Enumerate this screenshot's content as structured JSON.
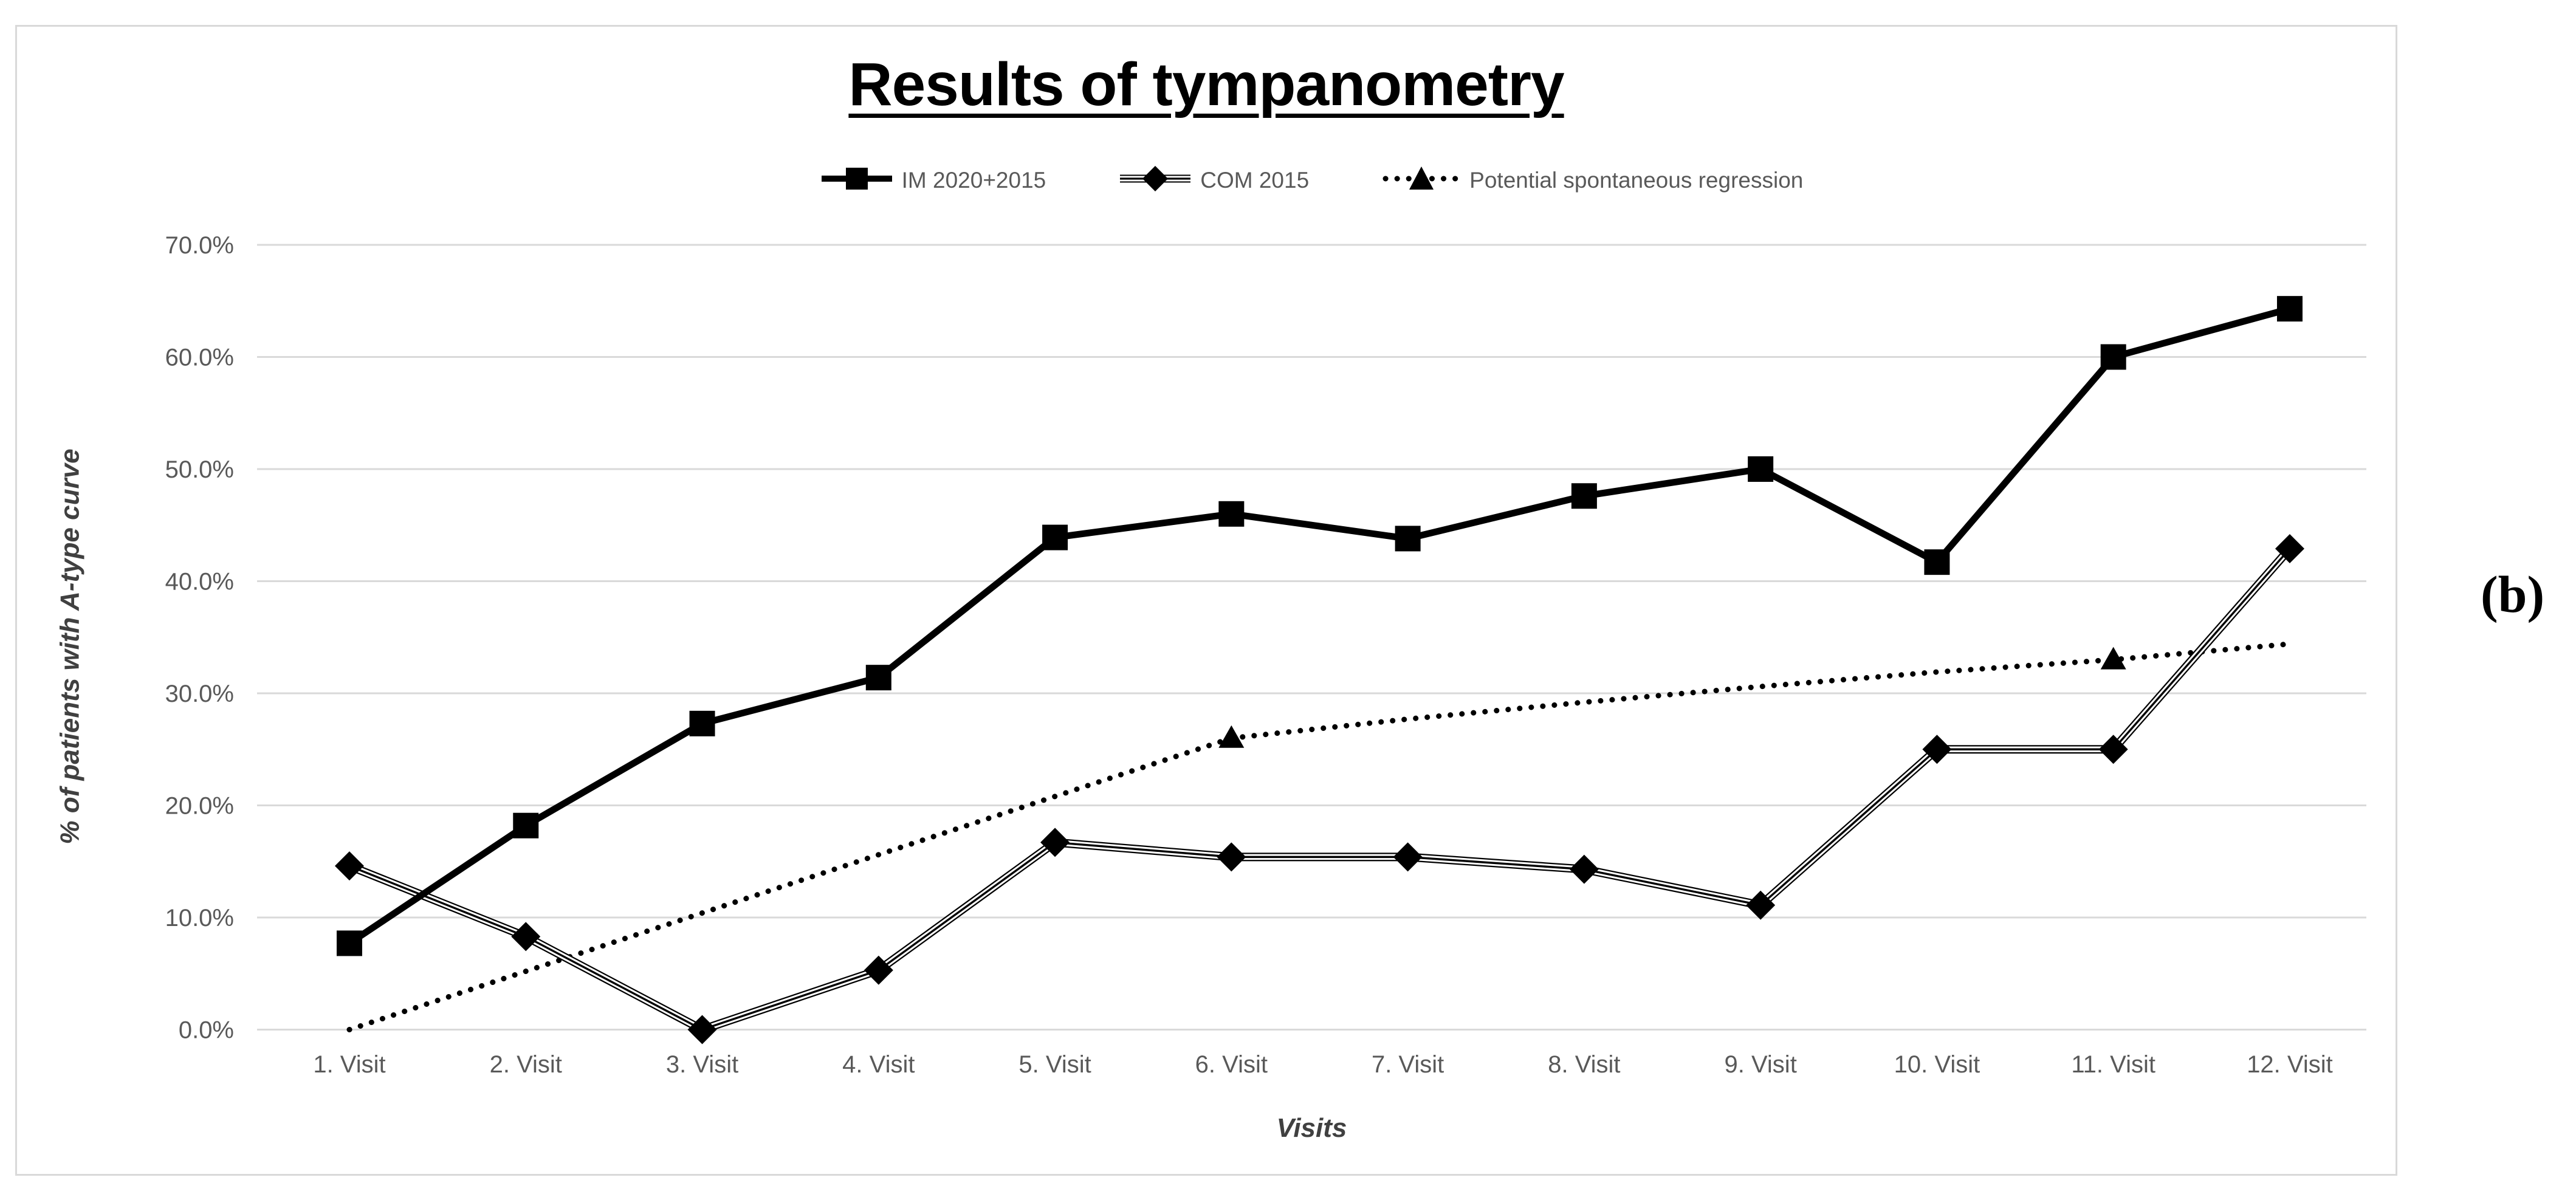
{
  "figure_label": "(b)",
  "header": {
    "title": "Results of tympanometry"
  },
  "legend": {
    "items": [
      {
        "label": "IM 2020+2015",
        "swatch": "thick-solid-line-square-marker"
      },
      {
        "label": "COM 2015",
        "swatch": "double-line-diamond-marker"
      },
      {
        "label": "Potential spontaneous regression",
        "swatch": "dotted-line-triangle-marker"
      }
    ]
  },
  "axes": {
    "x_title": "Visits",
    "y_title": "% of patients with A-type curve"
  },
  "chart_data": {
    "type": "line",
    "title": "Results of tympanometry",
    "xlabel": "Visits",
    "ylabel": "% of patients with A-type curve",
    "categories": [
      "1. Visit",
      "2. Visit",
      "3. Visit",
      "4. Visit",
      "5. Visit",
      "6. Visit",
      "7. Visit",
      "8. Visit",
      "9. Visit",
      "10. Visit",
      "11. Visit",
      "12. Visit"
    ],
    "y_ticks": [
      {
        "value": 70,
        "label": "70.0%"
      },
      {
        "value": 60,
        "label": "60.0%"
      },
      {
        "value": 50,
        "label": "50.0%"
      },
      {
        "value": 40,
        "label": "40.0%"
      },
      {
        "value": 30,
        "label": "30.0%"
      },
      {
        "value": 20,
        "label": "20.0%"
      },
      {
        "value": 10,
        "label": "10.0%"
      },
      {
        "value": 0,
        "label": "0.0%"
      }
    ],
    "ylim": [
      0,
      70
    ],
    "grid": true,
    "legend_position": "top-center",
    "series": [
      {
        "name": "IM 2020+2015",
        "line_style": "thick-solid",
        "marker": "square",
        "color": "#000000",
        "values": [
          7.7,
          18.2,
          27.3,
          31.4,
          43.9,
          46.0,
          43.8,
          47.6,
          50.0,
          41.7,
          60.0,
          64.3
        ]
      },
      {
        "name": "COM 2015",
        "line_style": "double",
        "marker": "diamond",
        "color": "#000000",
        "values": [
          14.6,
          8.3,
          0.0,
          5.3,
          16.7,
          15.4,
          15.4,
          14.3,
          11.1,
          25.0,
          25.0,
          42.9
        ]
      },
      {
        "name": "Potential spontaneous regression",
        "line_style": "dotted",
        "marker": "triangle",
        "marker_visit_indexes": [
          5,
          10
        ],
        "color": "#000000",
        "values": [
          0.0,
          5.2,
          10.4,
          15.6,
          20.8,
          26.0,
          27.7,
          29.2,
          30.6,
          31.9,
          33.0,
          34.4
        ]
      }
    ]
  },
  "colors": {
    "background": "#ffffff",
    "panel_border": "#d9d9d9",
    "gridline": "#d9d9d9",
    "tick_label": "#595959",
    "legend_text": "#595959",
    "axis_title": "#404040",
    "series": "#000000",
    "title": "#000000"
  }
}
